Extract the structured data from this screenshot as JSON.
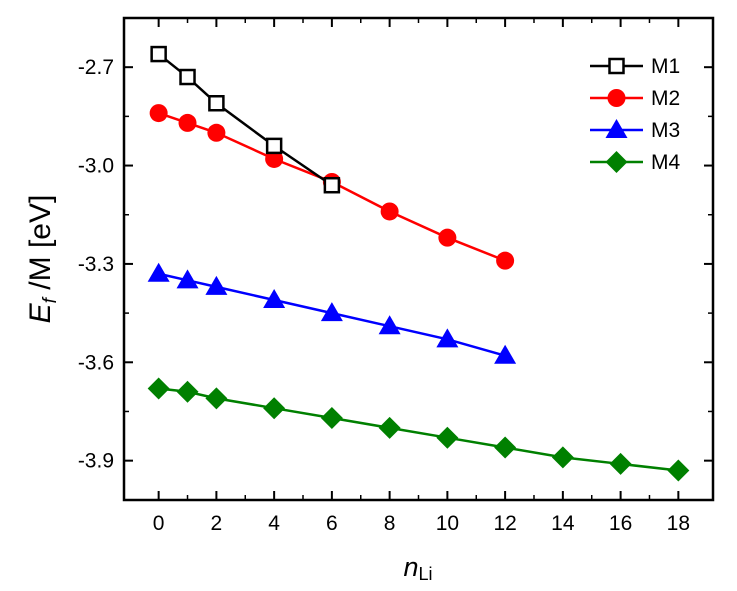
{
  "chart_data": {
    "type": "line",
    "title": "",
    "xlabel": {
      "main": "n",
      "sub": "Li"
    },
    "ylabel": {
      "part1": "E",
      "sub": "f",
      "part2": " /M [eV]"
    },
    "xlim": [
      -1.2,
      19.2
    ],
    "ylim": [
      -4.02,
      -2.55
    ],
    "xticks": [
      0,
      2,
      4,
      6,
      8,
      10,
      12,
      14,
      16,
      18
    ],
    "xtick_labels": [
      "0",
      "2",
      "4",
      "6",
      "8",
      "10",
      "12",
      "14",
      "16",
      "18"
    ],
    "yticks": [
      -2.7,
      -3.0,
      -3.3,
      -3.6,
      -3.9
    ],
    "ytick_labels": [
      "-2.7",
      "-3.0",
      "-3.3",
      "-3.6",
      "-3.9"
    ],
    "legend_position": "top-right",
    "series": [
      {
        "name": "M1",
        "color": "#000000",
        "marker": "open-square",
        "x": [
          0,
          1,
          2,
          4,
          6
        ],
        "y": [
          -2.66,
          -2.73,
          -2.81,
          -2.94,
          -3.06
        ]
      },
      {
        "name": "M2",
        "color": "#ff0000",
        "marker": "circle",
        "x": [
          0,
          1,
          2,
          4,
          6,
          8,
          10,
          12
        ],
        "y": [
          -2.84,
          -2.87,
          -2.9,
          -2.98,
          -3.05,
          -3.14,
          -3.22,
          -3.29
        ]
      },
      {
        "name": "M3",
        "color": "#0000ff",
        "marker": "triangle",
        "x": [
          0,
          1,
          2,
          4,
          6,
          8,
          10,
          12
        ],
        "y": [
          -3.33,
          -3.35,
          -3.37,
          -3.41,
          -3.45,
          -3.49,
          -3.53,
          -3.58
        ]
      },
      {
        "name": "M4",
        "color": "#008000",
        "marker": "diamond",
        "x": [
          0,
          1,
          2,
          4,
          6,
          8,
          10,
          12,
          14,
          16,
          18
        ],
        "y": [
          -3.68,
          -3.69,
          -3.71,
          -3.74,
          -3.77,
          -3.8,
          -3.83,
          -3.86,
          -3.89,
          -3.91,
          -3.93
        ]
      }
    ]
  }
}
